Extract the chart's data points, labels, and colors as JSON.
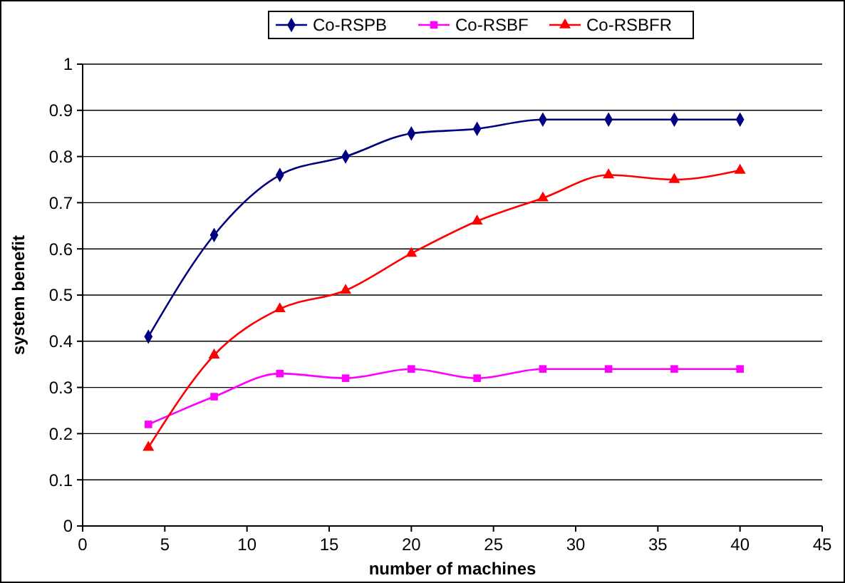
{
  "chart_data": {
    "type": "line",
    "xlabel": "number of machines",
    "ylabel": "system benefit",
    "x": [
      4,
      8,
      12,
      16,
      20,
      24,
      28,
      32,
      36,
      40
    ],
    "series": [
      {
        "name": "Co-RSPB",
        "color": "#000080",
        "marker": "diamond",
        "values": [
          0.41,
          0.63,
          0.76,
          0.8,
          0.85,
          0.86,
          0.88,
          0.88,
          0.88,
          0.88
        ]
      },
      {
        "name": "Co-RSBF",
        "color": "#ff00ff",
        "marker": "square",
        "values": [
          0.22,
          0.28,
          0.33,
          0.32,
          0.34,
          0.32,
          0.34,
          0.34,
          0.34,
          0.34
        ]
      },
      {
        "name": "Co-RSBFR",
        "color": "#ff0000",
        "marker": "triangle",
        "values": [
          0.17,
          0.37,
          0.47,
          0.51,
          0.59,
          0.66,
          0.71,
          0.76,
          0.75,
          0.77
        ]
      }
    ],
    "xlim": [
      0,
      45
    ],
    "xticks": [
      0,
      5,
      10,
      15,
      20,
      25,
      30,
      35,
      40,
      45
    ],
    "ylim": [
      0,
      1
    ],
    "yticks": [
      0,
      0.1,
      0.2,
      0.3,
      0.4,
      0.5,
      0.6,
      0.7,
      0.8,
      0.9,
      1
    ],
    "grid": "y",
    "legend": "top",
    "line_style": "solid"
  }
}
